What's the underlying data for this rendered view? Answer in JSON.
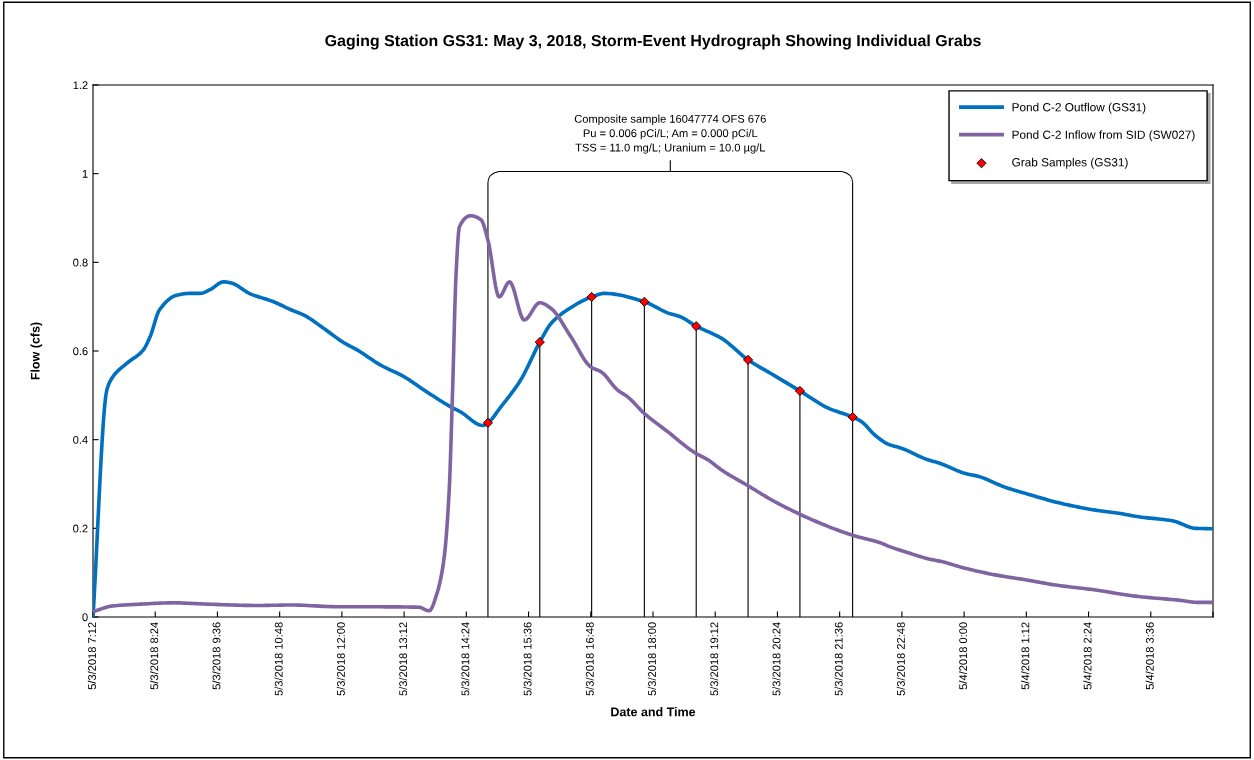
{
  "chart_data": {
    "type": "line",
    "title": "Gaging Station GS31: May 3, 2018, Storm-Event Hydrograph Showing Individual Grabs",
    "xlabel": "Date and Time",
    "ylabel": "Flow (cfs)",
    "annotations": [
      {
        "text": "Composite sample 16047774 OFS 676\nPu = 0.006 pCi/L; Am = 0.000 pCi/L\nTSS = 11.0 mg/L; Uranium = 10.0 µg/L",
        "x": "2018-05-03T14:49",
        "y": 0.98
      }
    ],
    "xlim": [
      "2018-05-03T07:12",
      "2018-05-04T04:48"
    ],
    "ylim": [
      0,
      1.2
    ],
    "yticks": [
      0,
      0.2,
      0.4,
      0.6,
      0.8,
      1,
      1.2
    ],
    "xticks": [
      {
        "value": "2018-05-03T07:12",
        "label": "5/3/2018 7:12"
      },
      {
        "value": "2018-05-03T08:24",
        "label": "5/3/2018 8:24"
      },
      {
        "value": "2018-05-03T09:36",
        "label": "5/3/2018 9:36"
      },
      {
        "value": "2018-05-03T10:48",
        "label": "5/3/2018 10:48"
      },
      {
        "value": "2018-05-03T12:00",
        "label": "5/3/2018 12:00"
      },
      {
        "value": "2018-05-03T13:12",
        "label": "5/3/2018 13:12"
      },
      {
        "value": "2018-05-03T14:24",
        "label": "5/3/2018 14:24"
      },
      {
        "value": "2018-05-03T15:36",
        "label": "5/3/2018 15:36"
      },
      {
        "value": "2018-05-03T16:48",
        "label": "5/3/2018 16:48"
      },
      {
        "value": "2018-05-03T18:00",
        "label": "5/3/2018 18:00"
      },
      {
        "value": "2018-05-03T19:12",
        "label": "5/3/2018 19:12"
      },
      {
        "value": "2018-05-03T20:24",
        "label": "5/3/2018 20:24"
      },
      {
        "value": "2018-05-03T21:36",
        "label": "5/3/2018 21:36"
      },
      {
        "value": "2018-05-03T22:48",
        "label": "5/3/2018 22:48"
      },
      {
        "value": "2018-05-04T00:00",
        "label": "5/4/2018 0:00"
      },
      {
        "value": "2018-05-04T01:12",
        "label": "5/4/2018 1:12"
      },
      {
        "value": "2018-05-04T02:24",
        "label": "5/4/2018 2:24"
      },
      {
        "value": "2018-05-04T03:36",
        "label": "5/4/2018 3:36"
      },
      {
        "value": "2018-05-04T04:48",
        "label": null
      }
    ],
    "grid": false,
    "legend": "top right",
    "series": [
      {
        "name": "Pond C-2 Outflow (GS31)",
        "color": "#0070c0",
        "marker": "none",
        "x": [
          "2018-05-03T07:12",
          "2018-05-03T07:28",
          "2018-05-03T07:35",
          "2018-05-03T07:51",
          "2018-05-03T08:10",
          "2018-05-03T08:18",
          "2018-05-03T08:29",
          "2018-05-03T08:49",
          "2018-05-03T09:04",
          "2018-05-03T09:16",
          "2018-05-03T09:28",
          "2018-05-03T09:43",
          "2018-05-03T09:51",
          "2018-05-03T10:14",
          "2018-05-03T10:41",
          "2018-05-03T11:01",
          "2018-05-03T11:16",
          "2018-05-03T11:39",
          "2018-05-03T12:02",
          "2018-05-03T12:18",
          "2018-05-03T12:45",
          "2018-05-03T13:12",
          "2018-05-03T13:35",
          "2018-05-03T14:06",
          "2018-05-03T14:17",
          "2018-05-03T14:43",
          "2018-05-03T14:49",
          "2018-05-03T15:04",
          "2018-05-03T15:27",
          "2018-05-03T15:49",
          "2018-05-03T16:02",
          "2018-05-03T16:21",
          "2018-05-03T16:49",
          "2018-05-03T17:04",
          "2018-05-03T17:50",
          "2018-05-03T18:17",
          "2018-05-03T18:32",
          "2018-05-03T18:50",
          "2018-05-03T19:19",
          "2018-05-03T19:50",
          "2018-05-03T20:21",
          "2018-05-03T20:50",
          "2018-05-03T21:23",
          "2018-05-03T21:51",
          "2018-05-03T22:01",
          "2018-05-03T22:17",
          "2018-05-03T22:32",
          "2018-05-03T22:47",
          "2018-05-03T23:19",
          "2018-05-03T23:30",
          "2018-05-04T00:01",
          "2018-05-04T00:17",
          "2018-05-04T00:47",
          "2018-05-04T01:14",
          "2018-05-04T01:53",
          "2018-05-04T02:32",
          "2018-05-04T02:59",
          "2018-05-04T03:22",
          "2018-05-04T04:01",
          "2018-05-04T04:28",
          "2018-05-04T04:48"
        ],
        "values": [
          0,
          0.512,
          0.542,
          0.572,
          0.602,
          0.632,
          0.693,
          0.726,
          0.73,
          0.73,
          0.739,
          0.756,
          0.754,
          0.729,
          0.711,
          0.693,
          0.681,
          0.651,
          0.619,
          0.602,
          0.568,
          0.542,
          0.512,
          0.474,
          0.463,
          0.432,
          0.438,
          0.474,
          0.535,
          0.62,
          0.662,
          0.693,
          0.722,
          0.73,
          0.711,
          0.686,
          0.677,
          0.656,
          0.629,
          0.58,
          0.544,
          0.51,
          0.471,
          0.451,
          0.441,
          0.41,
          0.39,
          0.381,
          0.354,
          0.348,
          0.324,
          0.317,
          0.293,
          0.277,
          0.256,
          0.241,
          0.234,
          0.226,
          0.217,
          0.2,
          0.199
        ]
      },
      {
        "name": "Pond C-2 Inflow from SID (SW027)",
        "color": "#8064a2",
        "marker": "none",
        "x": [
          "2018-05-03T07:12",
          "2018-05-03T07:35",
          "2018-05-03T08:07",
          "2018-05-03T08:45",
          "2018-05-03T09:24",
          "2018-05-03T10:22",
          "2018-05-03T11:01",
          "2018-05-03T11:58",
          "2018-05-03T12:37",
          "2018-05-03T13:29",
          "2018-05-03T13:41",
          "2018-05-03T13:50",
          "2018-05-03T13:58",
          "2018-05-03T14:04",
          "2018-05-03T14:08",
          "2018-05-03T14:12",
          "2018-05-03T14:16",
          "2018-05-03T14:29",
          "2018-05-03T14:41",
          "2018-05-03T14:49",
          "2018-05-03T15:02",
          "2018-05-03T15:14",
          "2018-05-03T15:31",
          "2018-05-03T15:49",
          "2018-05-03T16:02",
          "2018-05-03T16:25",
          "2018-05-03T16:48",
          "2018-05-03T17:00",
          "2018-05-03T17:19",
          "2018-05-03T17:31",
          "2018-05-03T17:50",
          "2018-05-03T18:17",
          "2018-05-03T18:48",
          "2018-05-03T19:04",
          "2018-05-03T19:19",
          "2018-05-03T19:50",
          "2018-05-03T20:21",
          "2018-05-03T20:52",
          "2018-05-03T21:23",
          "2018-05-03T21:50",
          "2018-05-03T22:25",
          "2018-05-03T22:32",
          "2018-05-03T22:52",
          "2018-05-03T23:19",
          "2018-05-03T23:34",
          "2018-05-04T00:01",
          "2018-05-04T00:36",
          "2018-05-04T01:14",
          "2018-05-04T01:46",
          "2018-05-04T02:32",
          "2018-05-04T03:18",
          "2018-05-04T04:08",
          "2018-05-04T04:31",
          "2018-05-04T04:48"
        ],
        "values": [
          0.012,
          0.025,
          0.029,
          0.032,
          0.029,
          0.026,
          0.027,
          0.023,
          0.023,
          0.022,
          0.014,
          0.053,
          0.129,
          0.279,
          0.505,
          0.768,
          0.88,
          0.905,
          0.896,
          0.85,
          0.722,
          0.756,
          0.67,
          0.709,
          0.696,
          0.632,
          0.564,
          0.553,
          0.512,
          0.496,
          0.459,
          0.418,
          0.371,
          0.354,
          0.332,
          0.296,
          0.26,
          0.23,
          0.204,
          0.185,
          0.166,
          0.16,
          0.147,
          0.131,
          0.125,
          0.11,
          0.095,
          0.083,
          0.072,
          0.061,
          0.047,
          0.038,
          0.033,
          0.033
        ]
      },
      {
        "name": "Grab Samples (GS31)",
        "type": "scatter",
        "color": "#ff0000",
        "marker": "diamond",
        "x": [
          "2018-05-03T14:49",
          "2018-05-03T15:49",
          "2018-05-03T16:49",
          "2018-05-03T17:50",
          "2018-05-03T18:50",
          "2018-05-03T19:50",
          "2018-05-03T20:50",
          "2018-05-03T21:51"
        ],
        "values": [
          0.438,
          0.62,
          0.722,
          0.711,
          0.656,
          0.58,
          0.51,
          0.451
        ],
        "errors": [
          [
            0,
            0.98
          ],
          [
            0,
            0.62
          ],
          [
            0,
            0.722
          ],
          [
            0,
            0.711
          ],
          [
            0,
            0.656
          ],
          [
            0,
            0.58
          ],
          [
            0,
            0.51
          ],
          [
            0,
            0.98
          ]
        ]
      }
    ]
  }
}
